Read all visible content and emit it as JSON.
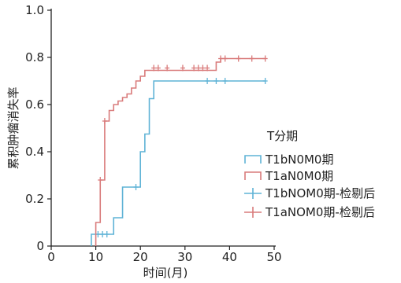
{
  "chart_data": {
    "type": "line",
    "title": "",
    "xlabel": "时间(月)",
    "ylabel": "累积肿瘤消失率",
    "xlim": [
      0,
      50
    ],
    "ylim": [
      0,
      1.0
    ],
    "xticks": [
      "0",
      "10",
      "20",
      "30",
      "40",
      "50"
    ],
    "yticks": [
      "1.0",
      "0.8",
      "0.6",
      "0.4",
      "0.2",
      "0"
    ],
    "grid": false,
    "legend": {
      "placement": "right-middle",
      "title": "T分期",
      "entries": [
        "T1bN0M0期",
        "T1aN0M0期",
        "T1bNOM0期-检剔后",
        "T1aNOM0期-检剔后"
      ]
    },
    "series": [
      {
        "name": "T1bN0M0期",
        "color": "#5fb3d6",
        "steps": [
          [
            9,
            0.05
          ],
          [
            14,
            0.12
          ],
          [
            16,
            0.25
          ],
          [
            20,
            0.4
          ],
          [
            21,
            0.475
          ],
          [
            22,
            0.625
          ],
          [
            23,
            0.7
          ],
          [
            48,
            0.7
          ]
        ],
        "censored": [
          [
            10.5,
            0.05
          ],
          [
            11.5,
            0.05
          ],
          [
            12.5,
            0.05
          ],
          [
            19,
            0.25
          ],
          [
            35,
            0.7
          ],
          [
            37,
            0.7
          ],
          [
            39,
            0.7
          ],
          [
            48,
            0.7
          ]
        ]
      },
      {
        "name": "T1aN0M0期",
        "color": "#d97b7b",
        "steps": [
          [
            10,
            0.1
          ],
          [
            11,
            0.28
          ],
          [
            12,
            0.53
          ],
          [
            13,
            0.575
          ],
          [
            14,
            0.6
          ],
          [
            15,
            0.615
          ],
          [
            16,
            0.63
          ],
          [
            17,
            0.645
          ],
          [
            18,
            0.67
          ],
          [
            19,
            0.7
          ],
          [
            20,
            0.72
          ],
          [
            21,
            0.745
          ],
          [
            37,
            0.78
          ],
          [
            38,
            0.795
          ],
          [
            48,
            0.795
          ]
        ],
        "censored": [
          [
            11,
            0.28
          ],
          [
            12,
            0.53
          ],
          [
            23,
            0.755
          ],
          [
            24,
            0.755
          ],
          [
            26,
            0.755
          ],
          [
            29.5,
            0.755
          ],
          [
            32,
            0.755
          ],
          [
            33,
            0.755
          ],
          [
            34,
            0.755
          ],
          [
            35,
            0.755
          ],
          [
            38,
            0.795
          ],
          [
            39,
            0.795
          ],
          [
            42,
            0.795
          ],
          [
            45,
            0.795
          ],
          [
            48,
            0.795
          ]
        ]
      }
    ]
  }
}
